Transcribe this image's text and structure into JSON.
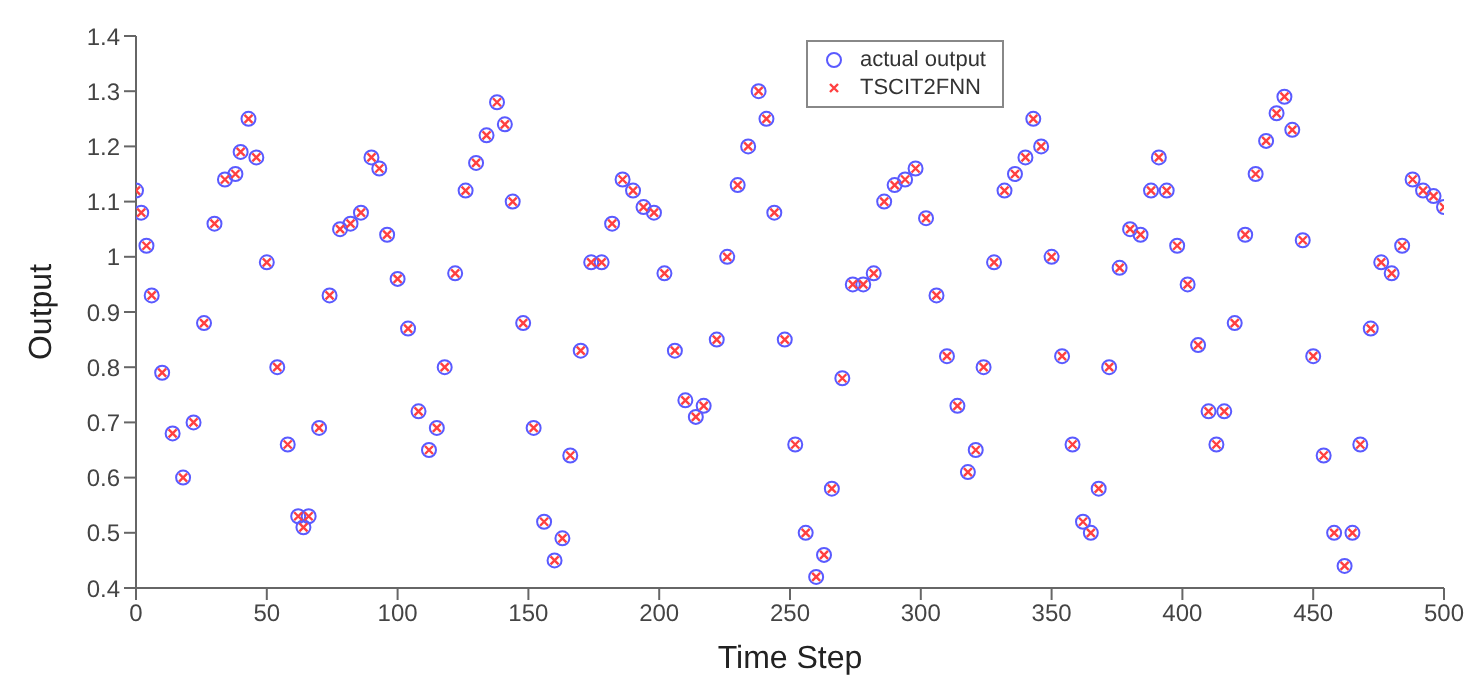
{
  "chart_data": {
    "type": "scatter",
    "xlabel": "Time Step",
    "ylabel": "Output",
    "x": [
      0,
      2,
      4,
      6,
      10,
      14,
      18,
      22,
      26,
      30,
      34,
      38,
      40,
      43,
      46,
      50,
      54,
      58,
      62,
      64,
      66,
      70,
      74,
      78,
      82,
      86,
      90,
      93,
      96,
      100,
      104,
      108,
      112,
      115,
      118,
      122,
      126,
      130,
      134,
      138,
      141,
      144,
      148,
      152,
      156,
      160,
      163,
      166,
      170,
      174,
      178,
      182,
      186,
      190,
      194,
      198,
      202,
      206,
      210,
      214,
      217,
      222,
      226,
      230,
      234,
      238,
      241,
      244,
      248,
      252,
      256,
      260,
      263,
      266,
      270,
      274,
      278,
      282,
      286,
      290,
      294,
      298,
      302,
      306,
      310,
      314,
      318,
      321,
      324,
      328,
      332,
      336,
      340,
      343,
      346,
      350,
      354,
      358,
      362,
      365,
      368,
      372,
      376,
      380,
      384,
      388,
      391,
      394,
      398,
      402,
      406,
      410,
      413,
      416,
      420,
      424,
      428,
      432,
      436,
      439,
      442,
      446,
      450,
      454,
      458,
      462,
      465,
      468,
      472,
      476,
      480,
      484,
      488,
      492,
      496,
      500
    ],
    "series": [
      {
        "name": "actual output",
        "color": "#5a5aff",
        "values": [
          1.12,
          1.08,
          1.02,
          0.93,
          0.79,
          0.68,
          0.6,
          0.7,
          0.88,
          1.06,
          1.14,
          1.15,
          1.19,
          1.25,
          1.18,
          0.99,
          0.8,
          0.66,
          0.53,
          0.51,
          0.53,
          0.69,
          0.93,
          1.05,
          1.06,
          1.08,
          1.18,
          1.16,
          1.04,
          0.96,
          0.87,
          0.72,
          0.65,
          0.69,
          0.8,
          0.97,
          1.12,
          1.17,
          1.22,
          1.28,
          1.24,
          1.1,
          0.88,
          0.69,
          0.52,
          0.45,
          0.49,
          0.64,
          0.83,
          0.99,
          0.99,
          1.06,
          1.14,
          1.12,
          1.09,
          1.08,
          0.97,
          0.83,
          0.74,
          0.71,
          0.73,
          0.85,
          1.0,
          1.13,
          1.2,
          1.3,
          1.25,
          1.08,
          0.85,
          0.66,
          0.5,
          0.42,
          0.46,
          0.58,
          0.78,
          0.95,
          0.95,
          0.97,
          1.1,
          1.13,
          1.14,
          1.16,
          1.07,
          0.93,
          0.82,
          0.73,
          0.61,
          0.65,
          0.8,
          0.99,
          1.12,
          1.15,
          1.18,
          1.25,
          1.2,
          1.0,
          0.82,
          0.66,
          0.52,
          0.5,
          0.58,
          0.8,
          0.98,
          1.05,
          1.04,
          1.12,
          1.18,
          1.12,
          1.02,
          0.95,
          0.84,
          0.72,
          0.66,
          0.72,
          0.88,
          1.04,
          1.15,
          1.21,
          1.26,
          1.29,
          1.23,
          1.03,
          0.82,
          0.64,
          0.5,
          0.44,
          0.5,
          0.66,
          0.87,
          0.99,
          0.97,
          1.02,
          1.14,
          1.12,
          1.11,
          1.09
        ]
      },
      {
        "name": "TSCIT2FNN",
        "color": "#ff4040",
        "marker": "cross",
        "values": [
          1.12,
          1.08,
          1.02,
          0.93,
          0.79,
          0.68,
          0.6,
          0.7,
          0.88,
          1.06,
          1.14,
          1.15,
          1.19,
          1.25,
          1.18,
          0.99,
          0.8,
          0.66,
          0.53,
          0.51,
          0.53,
          0.69,
          0.93,
          1.05,
          1.06,
          1.08,
          1.18,
          1.16,
          1.04,
          0.96,
          0.87,
          0.72,
          0.65,
          0.69,
          0.8,
          0.97,
          1.12,
          1.17,
          1.22,
          1.28,
          1.24,
          1.1,
          0.88,
          0.69,
          0.52,
          0.45,
          0.49,
          0.64,
          0.83,
          0.99,
          0.99,
          1.06,
          1.14,
          1.12,
          1.09,
          1.08,
          0.97,
          0.83,
          0.74,
          0.71,
          0.73,
          0.85,
          1.0,
          1.13,
          1.2,
          1.3,
          1.25,
          1.08,
          0.85,
          0.66,
          0.5,
          0.42,
          0.46,
          0.58,
          0.78,
          0.95,
          0.95,
          0.97,
          1.1,
          1.13,
          1.14,
          1.16,
          1.07,
          0.93,
          0.82,
          0.73,
          0.61,
          0.65,
          0.8,
          0.99,
          1.12,
          1.15,
          1.18,
          1.25,
          1.2,
          1.0,
          0.82,
          0.66,
          0.52,
          0.5,
          0.58,
          0.8,
          0.98,
          1.05,
          1.04,
          1.12,
          1.18,
          1.12,
          1.02,
          0.95,
          0.84,
          0.72,
          0.66,
          0.72,
          0.88,
          1.04,
          1.15,
          1.21,
          1.26,
          1.29,
          1.23,
          1.03,
          0.82,
          0.64,
          0.5,
          0.44,
          0.5,
          0.66,
          0.87,
          0.99,
          0.97,
          1.02,
          1.14,
          1.12,
          1.11,
          1.09
        ]
      }
    ],
    "xlim": [
      0,
      500
    ],
    "xticks": [
      0,
      50,
      100,
      150,
      200,
      250,
      300,
      350,
      400,
      450,
      500
    ],
    "ylim": [
      0.4,
      1.4
    ],
    "yticks": [
      0.4,
      0.5,
      0.6,
      0.7,
      0.8,
      0.9,
      {
        "value": 1,
        "label": "1"
      },
      1.1,
      1.2,
      1.3,
      1.4
    ],
    "legend": "top right",
    "marker": "circle"
  }
}
